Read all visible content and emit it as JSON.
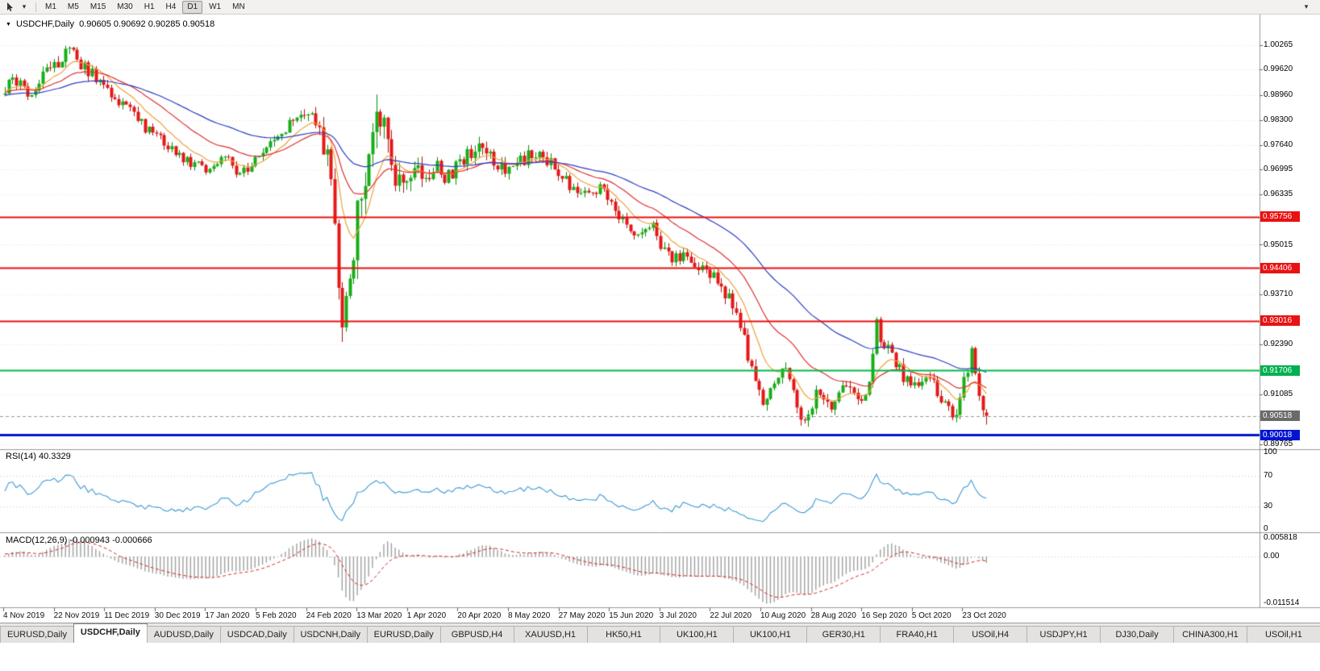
{
  "toolbar": {
    "timeframes": [
      "M1",
      "M5",
      "M15",
      "M30",
      "H1",
      "H4",
      "D1",
      "W1",
      "MN"
    ],
    "active_timeframe": "D1",
    "overflow_glyph": "▾",
    "cursor_dropdown_glyph": "▾"
  },
  "chart": {
    "title_symbol": "USDCHF,Daily",
    "title_ohlc": "0.90605 0.90692 0.90285 0.90518",
    "collapse_glyph": "▼",
    "price_axis_labels": [
      "1.00265",
      "0.99620",
      "0.98960",
      "0.98300",
      "0.97640",
      "0.96995",
      "0.96335",
      "0.95015",
      "0.93710",
      "0.92390",
      "0.91085",
      "0.89765"
    ],
    "level_badges": [
      {
        "text": "0.95756",
        "color": "#e81212"
      },
      {
        "text": "0.94406",
        "color": "#e81212"
      },
      {
        "text": "0.93016",
        "color": "#e81212"
      },
      {
        "text": "0.91706",
        "color": "#00b050"
      },
      {
        "text": "0.90518",
        "color": "#6a6a6a"
      },
      {
        "text": "0.90018",
        "color": "#0014d2"
      }
    ]
  },
  "rsi_panel": {
    "label": "RSI(14) 40.3329",
    "axis_labels": [
      "100",
      "70",
      "30",
      "0"
    ]
  },
  "macd_panel": {
    "label": "MACD(12,26,9) -0.000943 -0.000666",
    "axis_labels": [
      "0.005818",
      "0.00",
      "-0.011514"
    ]
  },
  "date_axis": [
    "4 Nov 2019",
    "22 Nov 2019",
    "11 Dec 2019",
    "30 Dec 2019",
    "17 Jan 2020",
    "5 Feb 2020",
    "24 Feb 2020",
    "13 Mar 2020",
    "1 Apr 2020",
    "20 Apr 2020",
    "8 May 2020",
    "27 May 2020",
    "15 Jun 2020",
    "3 Jul 2020",
    "22 Jul 2020",
    "10 Aug 2020",
    "28 Aug 2020",
    "16 Sep 2020",
    "5 Oct 2020",
    "23 Oct 2020"
  ],
  "tabs": {
    "active_index": 1,
    "items": [
      "EURUSD,Daily",
      "USDCHF,Daily",
      "AUDUSD,Daily",
      "USDCAD,Daily",
      "USDCNH,Daily",
      "EURUSD,Daily",
      "GBPUSD,H4",
      "XAUUSD,H1",
      "HK50,H1",
      "UK100,H1",
      "UK100,H1",
      "GER30,H1",
      "FRA40,H1",
      "USOil,H4",
      "USDJPY,H1",
      "DJ30,Daily",
      "CHINA300,H1",
      "USOil,H1"
    ]
  },
  "chart_data": {
    "type": "candlestick",
    "symbol": "USDCHF",
    "timeframe": "Daily",
    "ylim": [
      0.89765,
      1.00265
    ],
    "visible_candles": 260,
    "x_range_dates": [
      "4 Nov 2019",
      "30 Oct 2020"
    ],
    "last_candle": {
      "open": 0.90605,
      "high": 0.90692,
      "low": 0.90285,
      "close": 0.90518
    },
    "current_price": 0.90518,
    "horizontal_levels": [
      {
        "price": 0.95756,
        "color": "#e81212",
        "width": 2,
        "role": "resistance"
      },
      {
        "price": 0.94406,
        "color": "#e81212",
        "width": 2,
        "role": "resistance"
      },
      {
        "price": 0.93016,
        "color": "#e81212",
        "width": 2,
        "role": "resistance"
      },
      {
        "price": 0.91706,
        "color": "#00bb44",
        "width": 2,
        "role": "level"
      },
      {
        "price": 0.90018,
        "color": "#0014d2",
        "width": 3,
        "role": "support"
      }
    ],
    "moving_averages": [
      {
        "period": 10,
        "color": "#eda33b"
      },
      {
        "period": 25,
        "color": "#e03131"
      },
      {
        "period": 55,
        "color": "#2c3fc4"
      }
    ],
    "indicators": [
      {
        "name": "RSI",
        "period": 14,
        "current": 40.3329,
        "levels": [
          70,
          30
        ],
        "range": [
          0,
          100
        ],
        "color": "#3d9bd5"
      },
      {
        "name": "MACD",
        "fast": 12,
        "slow": 26,
        "signal": 9,
        "current_macd": -0.000943,
        "current_signal": -0.000666,
        "range": [
          -0.011514,
          0.005818
        ],
        "histogram_color": "#a0a0a0",
        "signal_color": "#dd2222"
      }
    ],
    "candle_colors": {
      "up": "#17ae17",
      "up_edge": "#0d8c0d",
      "down": "#e61717",
      "down_edge": "#b01212"
    },
    "price_trajectory": [
      [
        -60,
        0.988
      ],
      [
        -20,
        0.9895
      ],
      [
        -5,
        0.9915
      ],
      [
        0,
        0.99
      ],
      [
        2,
        0.9945
      ],
      [
        4,
        0.9915
      ],
      [
        6,
        0.9885
      ],
      [
        9,
        0.993
      ],
      [
        12,
        0.996
      ],
      [
        15,
        0.9995
      ],
      [
        17,
        1.0015
      ],
      [
        19,
        0.9985
      ],
      [
        22,
        0.996
      ],
      [
        25,
        0.9935
      ],
      [
        28,
        0.989
      ],
      [
        31,
        0.987
      ],
      [
        34,
        0.984
      ],
      [
        38,
        0.98
      ],
      [
        41,
        0.9785
      ],
      [
        45,
        0.9745
      ],
      [
        49,
        0.972
      ],
      [
        53,
        0.9705
      ],
      [
        56,
        0.972
      ],
      [
        58,
        0.9735
      ],
      [
        61,
        0.969
      ],
      [
        64,
        0.9705
      ],
      [
        67,
        0.973
      ],
      [
        70,
        0.976
      ],
      [
        73,
        0.9795
      ],
      [
        76,
        0.9825
      ],
      [
        79,
        0.985
      ],
      [
        81,
        0.984
      ],
      [
        83,
        0.981
      ],
      [
        85,
        0.973
      ],
      [
        86,
        0.965
      ],
      [
        87,
        0.955
      ],
      [
        88,
        0.942
      ],
      [
        89,
        0.928
      ],
      [
        90,
        0.933
      ],
      [
        91,
        0.94
      ],
      [
        92,
        0.949
      ],
      [
        93,
        0.956
      ],
      [
        94,
        0.964
      ],
      [
        95,
        0.971
      ],
      [
        96,
        0.979
      ],
      [
        97,
        0.984
      ],
      [
        98,
        0.9865
      ],
      [
        99,
        0.984
      ],
      [
        100,
        0.98
      ],
      [
        102,
        0.973
      ],
      [
        104,
        0.966
      ],
      [
        106,
        0.969
      ],
      [
        108,
        0.971
      ],
      [
        110,
        0.966
      ],
      [
        112,
        0.9685
      ],
      [
        114,
        0.97
      ],
      [
        117,
        0.968
      ],
      [
        120,
        0.972
      ],
      [
        123,
        0.974
      ],
      [
        126,
        0.9765
      ],
      [
        128,
        0.974
      ],
      [
        130,
        0.971
      ],
      [
        133,
        0.969
      ],
      [
        136,
        0.972
      ],
      [
        139,
        0.9745
      ],
      [
        142,
        0.973
      ],
      [
        145,
        0.9705
      ],
      [
        149,
        0.966
      ],
      [
        152,
        0.963
      ],
      [
        155,
        0.9645
      ],
      [
        157,
        0.9655
      ],
      [
        160,
        0.961
      ],
      [
        163,
        0.956
      ],
      [
        166,
        0.952
      ],
      [
        169,
        0.953
      ],
      [
        171,
        0.955
      ],
      [
        173,
        0.9505
      ],
      [
        176,
        0.946
      ],
      [
        179,
        0.9475
      ],
      [
        182,
        0.945
      ],
      [
        185,
        0.943
      ],
      [
        188,
        0.9405
      ],
      [
        191,
        0.936
      ],
      [
        194,
        0.928
      ],
      [
        197,
        0.918
      ],
      [
        200,
        0.909
      ],
      [
        202,
        0.911
      ],
      [
        204,
        0.914
      ],
      [
        206,
        0.9175
      ],
      [
        208,
        0.912
      ],
      [
        210,
        0.903
      ],
      [
        212,
        0.906
      ],
      [
        214,
        0.9105
      ],
      [
        216,
        0.908
      ],
      [
        218,
        0.906
      ],
      [
        220,
        0.911
      ],
      [
        222,
        0.9135
      ],
      [
        224,
        0.9095
      ],
      [
        226,
        0.9075
      ],
      [
        228,
        0.913
      ],
      [
        230,
        0.929
      ],
      [
        231,
        0.9255
      ],
      [
        233,
        0.922
      ],
      [
        235,
        0.9185
      ],
      [
        237,
        0.916
      ],
      [
        239,
        0.913
      ],
      [
        241,
        0.914
      ],
      [
        243,
        0.9165
      ],
      [
        245,
        0.913
      ],
      [
        247,
        0.91
      ],
      [
        249,
        0.907
      ],
      [
        251,
        0.9055
      ],
      [
        252,
        0.9085
      ],
      [
        253,
        0.914
      ],
      [
        255,
        0.9215
      ],
      [
        256,
        0.917
      ],
      [
        257,
        0.912
      ],
      [
        258,
        0.9075
      ],
      [
        259,
        0.9052
      ]
    ],
    "volatility": [
      [
        -60,
        0.004
      ],
      [
        0,
        0.0045
      ],
      [
        17,
        0.0038
      ],
      [
        40,
        0.0032
      ],
      [
        60,
        0.003
      ],
      [
        80,
        0.004
      ],
      [
        85,
        0.008
      ],
      [
        88,
        0.012
      ],
      [
        90,
        0.013
      ],
      [
        95,
        0.014
      ],
      [
        98,
        0.012
      ],
      [
        102,
        0.009
      ],
      [
        106,
        0.007
      ],
      [
        112,
        0.0055
      ],
      [
        120,
        0.0048
      ],
      [
        130,
        0.0044
      ],
      [
        140,
        0.004
      ],
      [
        150,
        0.0036
      ],
      [
        160,
        0.0036
      ],
      [
        170,
        0.0036
      ],
      [
        180,
        0.0036
      ],
      [
        190,
        0.004
      ],
      [
        196,
        0.005
      ],
      [
        202,
        0.0048
      ],
      [
        210,
        0.0046
      ],
      [
        220,
        0.004
      ],
      [
        228,
        0.004
      ],
      [
        233,
        0.0048
      ],
      [
        240,
        0.004
      ],
      [
        248,
        0.0038
      ],
      [
        255,
        0.0042
      ],
      [
        259,
        0.004
      ]
    ]
  }
}
